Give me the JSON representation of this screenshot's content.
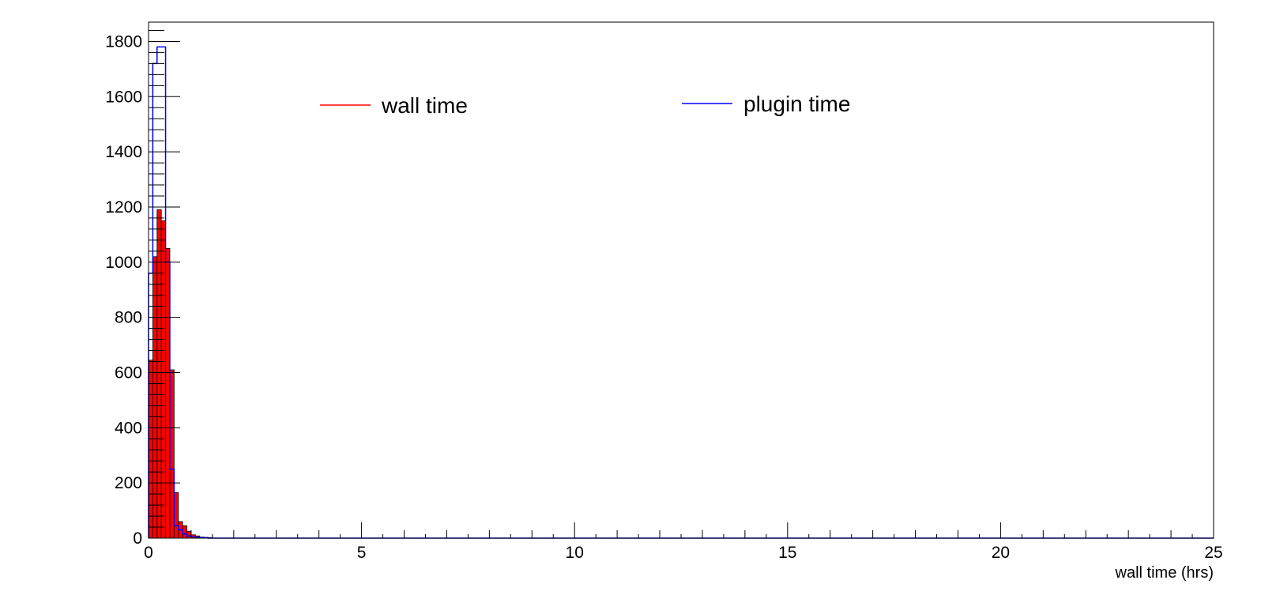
{
  "chart_data": {
    "type": "bar",
    "xlabel": "wall time (hrs)",
    "ylabel": "",
    "xlim": [
      0,
      25
    ],
    "ylim": [
      0,
      1870
    ],
    "x_ticks": [
      0,
      5,
      10,
      15,
      20,
      25
    ],
    "y_ticks": [
      0,
      200,
      400,
      600,
      800,
      1000,
      1200,
      1400,
      1600,
      1800
    ],
    "grid": false,
    "bin_width": 0.1,
    "colors": {
      "wall": "#ff0000",
      "plugin": "#0000ff",
      "frame": "#000000"
    },
    "series": [
      {
        "name": "wall time",
        "style": "filled-histogram",
        "bin_start": 0.0,
        "values": [
          645,
          1020,
          1190,
          1150,
          1050,
          610,
          165,
          60,
          45,
          25,
          12,
          8,
          4,
          3,
          2
        ]
      },
      {
        "name": "plugin time",
        "style": "step-histogram",
        "bin_start": 0.0,
        "values": [
          960,
          1720,
          1780,
          1780,
          1000,
          250,
          45,
          30,
          15,
          8,
          5,
          3,
          2,
          1,
          0
        ]
      }
    ],
    "legend": [
      {
        "label": "wall time",
        "series": "wall time"
      },
      {
        "label": "plugin time",
        "series": "plugin time"
      }
    ],
    "legend_position": "top"
  }
}
